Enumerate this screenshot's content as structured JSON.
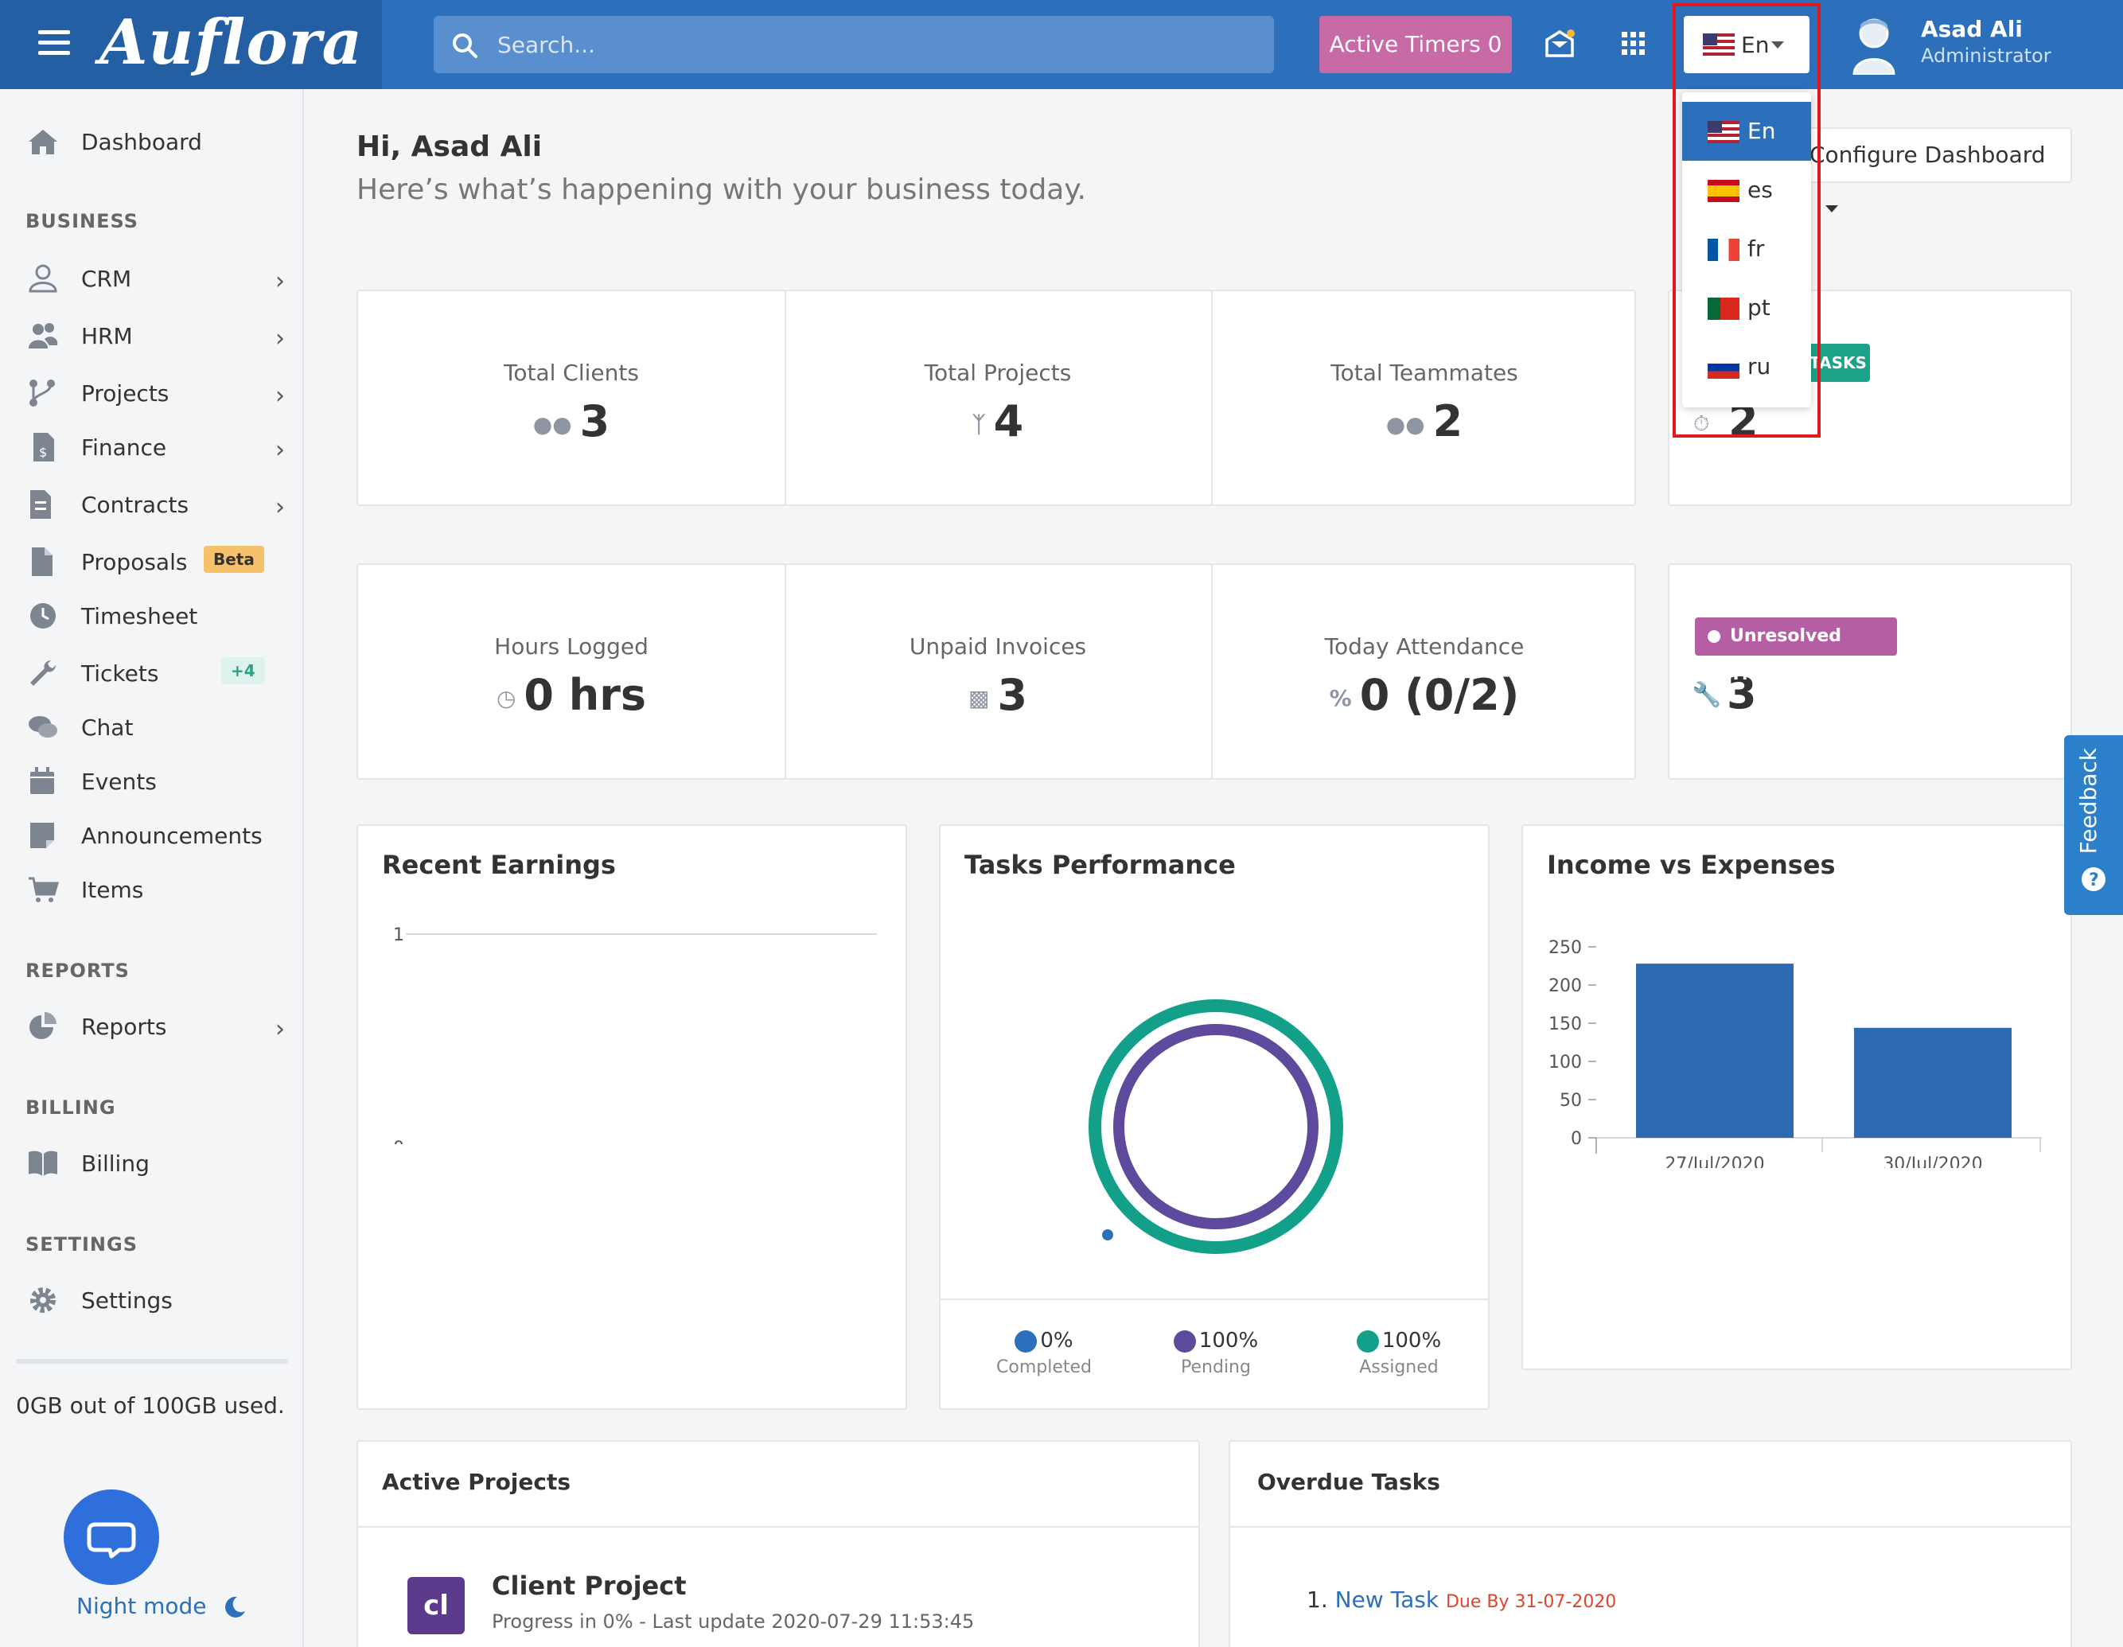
{
  "app": {
    "logo": "Auflora"
  },
  "header": {
    "search_placeholder": "Search...",
    "active_timers": "Active Timers 0",
    "language": "En",
    "user_name": "Asad Ali",
    "user_role": "Administrator"
  },
  "language_menu": {
    "items": [
      {
        "code": "En",
        "flag": "us",
        "selected": true
      },
      {
        "code": "es",
        "flag": "es",
        "selected": false
      },
      {
        "code": "fr",
        "flag": "fr",
        "selected": false
      },
      {
        "code": "pt",
        "flag": "pt",
        "selected": false
      },
      {
        "code": "ru",
        "flag": "ru",
        "selected": false
      }
    ]
  },
  "sidebar": {
    "dashboard": "Dashboard",
    "section_business": "BUSINESS",
    "items": [
      {
        "label": "CRM",
        "icon": "user-icon",
        "chevron": true
      },
      {
        "label": "HRM",
        "icon": "users-icon",
        "chevron": true
      },
      {
        "label": "Projects",
        "icon": "branch-icon",
        "chevron": true
      },
      {
        "label": "Finance",
        "icon": "invoice-icon",
        "chevron": true
      },
      {
        "label": "Contracts",
        "icon": "contract-icon",
        "chevron": true
      },
      {
        "label": "Proposals",
        "icon": "file-icon",
        "badge": "Beta"
      },
      {
        "label": "Timesheet",
        "icon": "clock-icon"
      },
      {
        "label": "Tickets",
        "icon": "wrench-icon",
        "badge": "+4"
      },
      {
        "label": "Chat",
        "icon": "chat-icon"
      },
      {
        "label": "Events",
        "icon": "calendar-icon"
      },
      {
        "label": "Announcements",
        "icon": "note-icon"
      },
      {
        "label": "Items",
        "icon": "cart-icon"
      }
    ],
    "section_reports": "REPORTS",
    "reports": "Reports",
    "section_billing": "BILLING",
    "billing": "Billing",
    "section_settings": "SETTINGS",
    "settings": "Settings",
    "storage": "0GB out of 100GB used.",
    "night_mode": "Night mode"
  },
  "main": {
    "greeting": "Hi, Asad Ali",
    "subtitle": "Here’s what’s happening with your business today.",
    "configure": "Configure Dashboard",
    "stats_row1": [
      {
        "title": "Total Clients",
        "value": "3",
        "icon": "users-icon"
      },
      {
        "title": "Total Projects",
        "value": "4",
        "icon": "branch-icon"
      },
      {
        "title": "Total Teammates",
        "value": "2",
        "icon": "users-icon"
      }
    ],
    "tasks_card": {
      "tag": "TASKS",
      "value": "2"
    },
    "stats_row2": [
      {
        "title": "Hours Logged",
        "value": "0 hrs",
        "icon": "clock-icon"
      },
      {
        "title": "Unpaid Invoices",
        "value": "3",
        "icon": "file-icon"
      },
      {
        "title": "Today Attendance",
        "value": "0 (0/2)",
        "icon": "percent-icon"
      }
    ],
    "tickets_card": {
      "tag": "Unresolved Tickets",
      "value": "3"
    },
    "recent_earnings": {
      "title": "Recent Earnings"
    },
    "tasks_performance": {
      "title": "Tasks Performance",
      "legend": [
        {
          "value": "0%",
          "label": "Completed",
          "color": "#2c6fbb"
        },
        {
          "value": "100%",
          "label": "Pending",
          "color": "#5e4a9c"
        },
        {
          "value": "100%",
          "label": "Assigned",
          "color": "#12a08a"
        }
      ]
    },
    "income_expenses": {
      "title": "Income vs Expenses"
    },
    "active_projects": {
      "title": "Active Projects",
      "logo_text": "cl",
      "project_name": "Client Project",
      "progress": "Progress in 0% - Last update 2020-07-29 11:53:45"
    },
    "overdue_tasks": {
      "title": "Overdue Tasks",
      "num": "1.",
      "task": "New Task",
      "due": "Due By 31-07-2020"
    },
    "feedback": "Feedback"
  },
  "chart_data": [
    {
      "type": "line",
      "title": "Recent Earnings",
      "y_ticks": [
        "1",
        "0"
      ],
      "series": []
    },
    {
      "type": "pie",
      "title": "Tasks Performance",
      "categories": [
        "Completed",
        "Pending",
        "Assigned"
      ],
      "values": [
        0,
        100,
        100
      ]
    },
    {
      "type": "bar",
      "title": "Income vs Expenses",
      "categories": [
        "27/Jul/2020",
        "30/Jul/2020"
      ],
      "values": [
        228,
        144
      ],
      "y_ticks": [
        "250",
        "200",
        "150",
        "100",
        "50",
        "0"
      ],
      "ylim": [
        0,
        250
      ],
      "color": "#2e6ab3"
    }
  ]
}
